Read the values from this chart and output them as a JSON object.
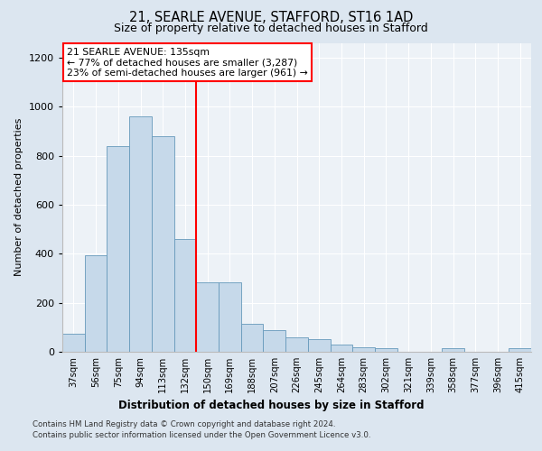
{
  "title1": "21, SEARLE AVENUE, STAFFORD, ST16 1AD",
  "title2": "Size of property relative to detached houses in Stafford",
  "xlabel": "Distribution of detached houses by size in Stafford",
  "ylabel": "Number of detached properties",
  "categories": [
    "37sqm",
    "56sqm",
    "75sqm",
    "94sqm",
    "113sqm",
    "132sqm",
    "150sqm",
    "169sqm",
    "188sqm",
    "207sqm",
    "226sqm",
    "245sqm",
    "264sqm",
    "283sqm",
    "302sqm",
    "321sqm",
    "339sqm",
    "358sqm",
    "377sqm",
    "396sqm",
    "415sqm"
  ],
  "values": [
    75,
    395,
    840,
    960,
    880,
    460,
    285,
    285,
    115,
    90,
    60,
    50,
    30,
    20,
    15,
    0,
    0,
    15,
    0,
    0,
    15
  ],
  "bar_color": "#c6d9ea",
  "bar_edge_color": "#6699bb",
  "vline_index": 5.5,
  "vline_color": "red",
  "annotation_line1": "21 SEARLE AVENUE: 135sqm",
  "annotation_line2": "← 77% of detached houses are smaller (3,287)",
  "annotation_line3": "23% of semi-detached houses are larger (961) →",
  "annotation_box_color": "white",
  "annotation_box_edge_color": "red",
  "ylim": [
    0,
    1260
  ],
  "yticks": [
    0,
    200,
    400,
    600,
    800,
    1000,
    1200
  ],
  "footer1": "Contains HM Land Registry data © Crown copyright and database right 2024.",
  "footer2": "Contains public sector information licensed under the Open Government Licence v3.0.",
  "background_color": "#dce6f0",
  "plot_bg_color": "#edf2f7",
  "grid_color": "#ffffff"
}
